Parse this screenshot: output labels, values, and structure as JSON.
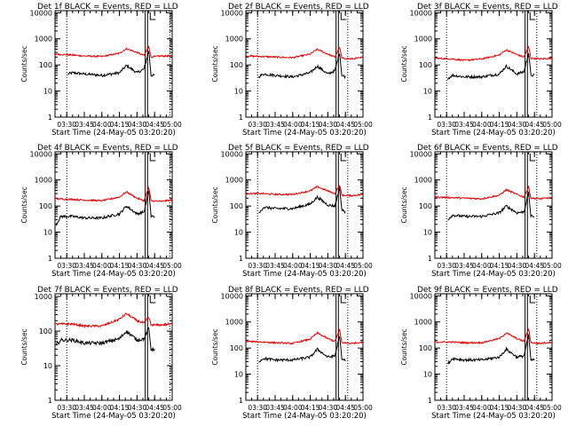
{
  "colors": {
    "events": "#000000",
    "lld": "#e00000",
    "axis": "#000000",
    "background": "#ffffff"
  },
  "chart_data": [
    {
      "type": "line",
      "title": "Det 1f BLACK = Events, RED = LLD",
      "xlabel": "Start Time (24-May-05 03:20:20)",
      "ylabel": "Counts/sec",
      "yscale": "log",
      "ylim": [
        1,
        12000
      ],
      "xlim": [
        "03:20",
        "05:00"
      ],
      "xticks": [
        "03:30",
        "03:45",
        "04:00",
        "04:15",
        "04:30",
        "04:45",
        "05:00"
      ],
      "yticks": [
        "1",
        "10",
        "100",
        "1000",
        "10000"
      ],
      "markers": [
        {
          "time": "03:30",
          "style": "dotted"
        },
        {
          "time": "04:37",
          "style": "solid"
        },
        {
          "time": "04:39",
          "style": "solid"
        },
        {
          "time": "04:58",
          "style": "dotted"
        }
      ],
      "series": [
        {
          "color": "black",
          "x": [
            "03:31",
            "03:35",
            "03:45",
            "04:00",
            "04:15",
            "04:21",
            "04:30",
            "04:36",
            "04:40",
            "04:42",
            "04:45"
          ],
          "y": [
            45,
            50,
            45,
            40,
            50,
            95,
            50,
            70,
            350,
            40,
            40
          ]
        },
        {
          "color": "red",
          "x": [
            "03:20",
            "03:35",
            "03:45",
            "04:00",
            "04:15",
            "04:21",
            "04:30",
            "04:36",
            "04:40",
            "04:42",
            "04:50",
            "05:00"
          ],
          "y": [
            260,
            240,
            220,
            210,
            280,
            420,
            300,
            230,
            520,
            200,
            220,
            220
          ]
        }
      ]
    },
    {
      "type": "line",
      "title": "Det 2f BLACK = Events, RED = LLD",
      "xlabel": "Start Time (24-May-05 03:20:20)",
      "ylabel": "Counts/sec",
      "yscale": "log",
      "ylim": [
        1,
        12000
      ],
      "xlim": [
        "03:20",
        "05:00"
      ],
      "xticks": [
        "03:30",
        "03:45",
        "04:00",
        "04:15",
        "04:30",
        "04:45",
        "05:00"
      ],
      "yticks": [
        "1",
        "10",
        "100",
        "1000",
        "10000"
      ],
      "markers": [
        {
          "time": "03:30",
          "style": "dotted"
        },
        {
          "time": "04:37",
          "style": "solid"
        },
        {
          "time": "04:39",
          "style": "solid"
        },
        {
          "time": "04:47",
          "style": "dotted"
        }
      ],
      "series": [
        {
          "color": "black",
          "x": [
            "03:31",
            "03:35",
            "03:45",
            "04:00",
            "04:15",
            "04:21",
            "04:30",
            "04:36",
            "04:40",
            "04:42",
            "04:45"
          ],
          "y": [
            35,
            45,
            40,
            35,
            50,
            90,
            45,
            60,
            300,
            40,
            35
          ]
        },
        {
          "color": "red",
          "x": [
            "03:20",
            "03:35",
            "03:45",
            "04:00",
            "04:15",
            "04:21",
            "04:30",
            "04:36",
            "04:40",
            "04:42",
            "04:50",
            "05:00"
          ],
          "y": [
            220,
            210,
            200,
            190,
            260,
            400,
            260,
            200,
            480,
            180,
            170,
            190
          ]
        }
      ]
    },
    {
      "type": "line",
      "title": "Det 3f BLACK = Events, RED = LLD",
      "xlabel": "Start Time (24-May-05 03:20:20)",
      "ylabel": "Counts/sec",
      "yscale": "log",
      "ylim": [
        1,
        12000
      ],
      "xlim": [
        "03:20",
        "05:00"
      ],
      "xticks": [
        "03:30",
        "03:45",
        "04:00",
        "04:15",
        "04:30",
        "04:45",
        "05:00"
      ],
      "yticks": [
        "1",
        "10",
        "100",
        "1000",
        "10000"
      ],
      "markers": [
        {
          "time": "03:30",
          "style": "dotted"
        },
        {
          "time": "04:37",
          "style": "solid"
        },
        {
          "time": "04:39",
          "style": "solid"
        },
        {
          "time": "04:47",
          "style": "dotted"
        }
      ],
      "series": [
        {
          "color": "black",
          "x": [
            "03:31",
            "03:35",
            "03:45",
            "04:00",
            "04:15",
            "04:21",
            "04:30",
            "04:36",
            "04:40",
            "04:42",
            "04:45"
          ],
          "y": [
            30,
            40,
            35,
            35,
            45,
            90,
            45,
            55,
            280,
            40,
            40
          ]
        },
        {
          "color": "red",
          "x": [
            "03:20",
            "03:35",
            "03:45",
            "04:00",
            "04:15",
            "04:21",
            "04:30",
            "04:36",
            "04:40",
            "04:42",
            "04:50",
            "05:00"
          ],
          "y": [
            180,
            170,
            150,
            170,
            240,
            380,
            250,
            200,
            500,
            180,
            170,
            180
          ]
        }
      ]
    },
    {
      "type": "line",
      "title": "Det 4f BLACK = Events, RED = LLD",
      "xlabel": "Start Time (24-May-05 03:20:20)",
      "ylabel": "Counts/sec",
      "yscale": "log",
      "ylim": [
        1,
        12000
      ],
      "xlim": [
        "03:20",
        "05:00"
      ],
      "xticks": [
        "03:30",
        "03:45",
        "04:00",
        "04:15",
        "04:30",
        "04:45",
        "05:00"
      ],
      "yticks": [
        "1",
        "10",
        "100",
        "1000",
        "10000"
      ],
      "markers": [
        {
          "time": "03:30",
          "style": "dotted"
        },
        {
          "time": "04:37",
          "style": "solid"
        },
        {
          "time": "04:39",
          "style": "solid"
        },
        {
          "time": "04:58",
          "style": "dotted"
        }
      ],
      "series": [
        {
          "color": "black",
          "x": [
            "03:21",
            "03:25",
            "03:35",
            "03:45",
            "04:00",
            "04:15",
            "04:21",
            "04:30",
            "04:36",
            "04:40",
            "04:42",
            "04:45"
          ],
          "y": [
            20,
            40,
            40,
            35,
            35,
            50,
            100,
            50,
            60,
            400,
            40,
            40
          ]
        },
        {
          "color": "red",
          "x": [
            "03:20",
            "03:35",
            "03:45",
            "04:00",
            "04:15",
            "04:21",
            "04:30",
            "04:36",
            "04:40",
            "04:42",
            "04:50",
            "05:00"
          ],
          "y": [
            190,
            180,
            170,
            160,
            220,
            350,
            200,
            160,
            500,
            160,
            150,
            170
          ]
        }
      ]
    },
    {
      "type": "line",
      "title": "Det 5f BLACK = Events, RED = LLD",
      "xlabel": "Start Time (24-May-05 03:20:20)",
      "ylabel": "Counts/sec",
      "yscale": "log",
      "ylim": [
        1,
        12000
      ],
      "xlim": [
        "03:20",
        "05:00"
      ],
      "xticks": [
        "03:30",
        "03:45",
        "04:00",
        "04:15",
        "04:30",
        "04:45",
        "05:00"
      ],
      "yticks": [
        "1",
        "10",
        "100",
        "1000",
        "10000"
      ],
      "markers": [
        {
          "time": "03:30",
          "style": "dotted"
        },
        {
          "time": "04:37",
          "style": "solid"
        },
        {
          "time": "04:39",
          "style": "solid"
        },
        {
          "time": "04:47",
          "style": "dotted"
        }
      ],
      "series": [
        {
          "color": "black",
          "x": [
            "03:31",
            "03:35",
            "03:45",
            "04:00",
            "04:15",
            "04:21",
            "04:30",
            "04:36",
            "04:40",
            "04:42",
            "04:45"
          ],
          "y": [
            50,
            90,
            80,
            80,
            120,
            220,
            110,
            100,
            500,
            70,
            60
          ]
        },
        {
          "color": "red",
          "x": [
            "03:20",
            "03:35",
            "03:45",
            "04:00",
            "04:15",
            "04:21",
            "04:30",
            "04:36",
            "04:40",
            "04:42",
            "04:50",
            "05:00"
          ],
          "y": [
            300,
            300,
            280,
            280,
            380,
            550,
            380,
            300,
            650,
            260,
            250,
            280
          ]
        }
      ]
    },
    {
      "type": "line",
      "title": "Det 6f BLACK = Events, RED = LLD",
      "xlabel": "Start Time (24-May-05 03:20:20)",
      "ylabel": "Counts/sec",
      "yscale": "log",
      "ylim": [
        1,
        12000
      ],
      "xlim": [
        "03:20",
        "05:00"
      ],
      "xticks": [
        "03:30",
        "03:45",
        "04:00",
        "04:15",
        "04:30",
        "04:45",
        "05:00"
      ],
      "yticks": [
        "1",
        "10",
        "100",
        "1000",
        "10000"
      ],
      "markers": [
        {
          "time": "03:30",
          "style": "dotted"
        },
        {
          "time": "04:37",
          "style": "solid"
        },
        {
          "time": "04:39",
          "style": "solid"
        },
        {
          "time": "04:47",
          "style": "dotted"
        }
      ],
      "series": [
        {
          "color": "black",
          "x": [
            "03:31",
            "03:35",
            "03:45",
            "04:00",
            "04:15",
            "04:21",
            "04:30",
            "04:36",
            "04:40",
            "04:42",
            "04:45"
          ],
          "y": [
            30,
            45,
            40,
            40,
            55,
            100,
            55,
            60,
            320,
            40,
            40
          ]
        },
        {
          "color": "red",
          "x": [
            "03:20",
            "03:35",
            "03:45",
            "04:00",
            "04:15",
            "04:21",
            "04:30",
            "04:36",
            "04:40",
            "04:42",
            "04:50",
            "05:00"
          ],
          "y": [
            220,
            210,
            200,
            190,
            260,
            420,
            280,
            220,
            550,
            200,
            190,
            210
          ]
        }
      ]
    },
    {
      "type": "line",
      "title": "Det 7f BLACK = Events, RED = LLD",
      "xlabel": "Start Time (24-May-05 03:20:20)",
      "ylabel": "Counts/sec",
      "yscale": "log",
      "ylim": [
        1,
        1200
      ],
      "xlim": [
        "03:20",
        "05:00"
      ],
      "xticks": [
        "03:30",
        "03:45",
        "04:00",
        "04:15",
        "04:30",
        "04:45",
        "05:00"
      ],
      "yticks": [
        "1",
        "10",
        "100",
        "1000"
      ],
      "markers": [
        {
          "time": "03:30",
          "style": "dotted"
        },
        {
          "time": "04:37",
          "style": "solid"
        },
        {
          "time": "04:39",
          "style": "solid"
        },
        {
          "time": "04:58",
          "style": "dotted"
        }
      ],
      "series": [
        {
          "color": "black",
          "x": [
            "03:21",
            "03:25",
            "03:35",
            "03:45",
            "04:00",
            "04:15",
            "04:21",
            "04:30",
            "04:36",
            "04:40",
            "04:42",
            "04:45"
          ],
          "y": [
            40,
            55,
            55,
            45,
            45,
            60,
            100,
            55,
            60,
            120,
            30,
            30
          ]
        },
        {
          "color": "red",
          "x": [
            "03:20",
            "03:35",
            "03:45",
            "04:00",
            "04:15",
            "04:21",
            "04:30",
            "04:36",
            "04:40",
            "04:42",
            "04:50",
            "05:00"
          ],
          "y": [
            160,
            160,
            140,
            140,
            220,
            320,
            200,
            170,
            250,
            150,
            150,
            160
          ]
        }
      ]
    },
    {
      "type": "line",
      "title": "Det 8f BLACK = Events, RED = LLD",
      "xlabel": "Start Time (24-May-05 03:20:20)",
      "ylabel": "Counts/sec",
      "yscale": "log",
      "ylim": [
        1,
        12000
      ],
      "xlim": [
        "03:20",
        "05:00"
      ],
      "xticks": [
        "03:30",
        "03:45",
        "04:00",
        "04:15",
        "04:30",
        "04:45",
        "05:00"
      ],
      "yticks": [
        "1",
        "10",
        "100",
        "1000",
        "10000"
      ],
      "markers": [
        {
          "time": "03:30",
          "style": "dotted"
        },
        {
          "time": "04:37",
          "style": "solid"
        },
        {
          "time": "04:39",
          "style": "solid"
        },
        {
          "time": "04:47",
          "style": "dotted"
        }
      ],
      "series": [
        {
          "color": "black",
          "x": [
            "03:31",
            "03:35",
            "03:45",
            "04:00",
            "04:15",
            "04:21",
            "04:30",
            "04:36",
            "04:40",
            "04:42",
            "04:45"
          ],
          "y": [
            30,
            40,
            35,
            35,
            45,
            90,
            45,
            50,
            300,
            35,
            35
          ]
        },
        {
          "color": "red",
          "x": [
            "03:20",
            "03:35",
            "03:45",
            "04:00",
            "04:15",
            "04:21",
            "04:30",
            "04:36",
            "04:40",
            "04:42",
            "04:50",
            "05:00"
          ],
          "y": [
            180,
            170,
            160,
            150,
            220,
            380,
            230,
            180,
            500,
            160,
            150,
            170
          ]
        }
      ]
    },
    {
      "type": "line",
      "title": "Det 9f BLACK = Events, RED = LLD",
      "xlabel": "Start Time (24-May-05 03:20:20)",
      "ylabel": "Counts/sec",
      "yscale": "log",
      "ylim": [
        1,
        12000
      ],
      "xlim": [
        "03:20",
        "05:00"
      ],
      "xticks": [
        "03:30",
        "03:45",
        "04:00",
        "04:15",
        "04:30",
        "04:45",
        "05:00"
      ],
      "yticks": [
        "1",
        "10",
        "100",
        "1000",
        "10000"
      ],
      "markers": [
        {
          "time": "03:30",
          "style": "dotted"
        },
        {
          "time": "04:37",
          "style": "solid"
        },
        {
          "time": "04:39",
          "style": "solid"
        },
        {
          "time": "04:47",
          "style": "dotted"
        }
      ],
      "series": [
        {
          "color": "black",
          "x": [
            "03:31",
            "03:35",
            "03:45",
            "04:00",
            "04:15",
            "04:21",
            "04:30",
            "04:36",
            "04:40",
            "04:42",
            "04:45"
          ],
          "y": [
            25,
            40,
            35,
            35,
            45,
            90,
            45,
            50,
            300,
            35,
            35
          ]
        },
        {
          "color": "red",
          "x": [
            "03:20",
            "03:35",
            "03:45",
            "04:00",
            "04:15",
            "04:21",
            "04:30",
            "04:36",
            "04:40",
            "04:42",
            "04:50",
            "05:00"
          ],
          "y": [
            170,
            170,
            160,
            160,
            230,
            380,
            230,
            180,
            550,
            160,
            150,
            170
          ]
        }
      ]
    }
  ]
}
